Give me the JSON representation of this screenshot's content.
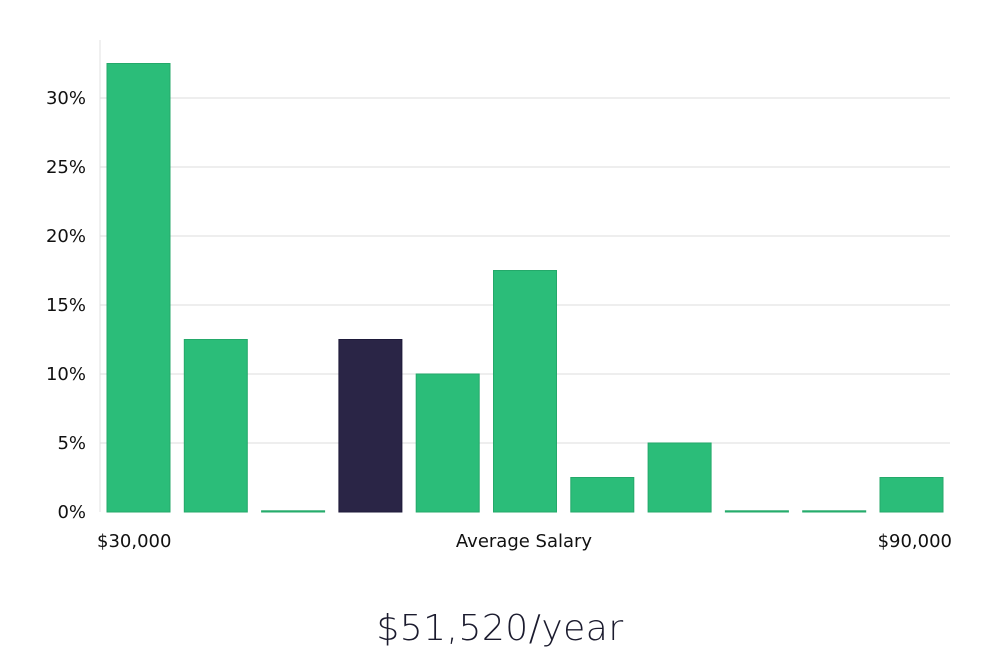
{
  "chart_data": {
    "type": "bar",
    "xlabel": "Average Salary",
    "x_range_labels": [
      "$30,000",
      "$90,000"
    ],
    "y_ticks": [
      "0%",
      "5%",
      "10%",
      "15%",
      "20%",
      "25%",
      "30%"
    ],
    "ylim": [
      0,
      34
    ],
    "grid": true,
    "values": [
      32.5,
      12.5,
      0,
      12.5,
      10,
      17.5,
      2.5,
      5,
      0,
      0,
      2.5
    ],
    "highlight_index": 3,
    "colors": {
      "bar": "#2bbd79",
      "highlight": "#2a2546",
      "grid": "#e3e3e3"
    }
  },
  "summary": {
    "salary": "$51,520/year"
  }
}
